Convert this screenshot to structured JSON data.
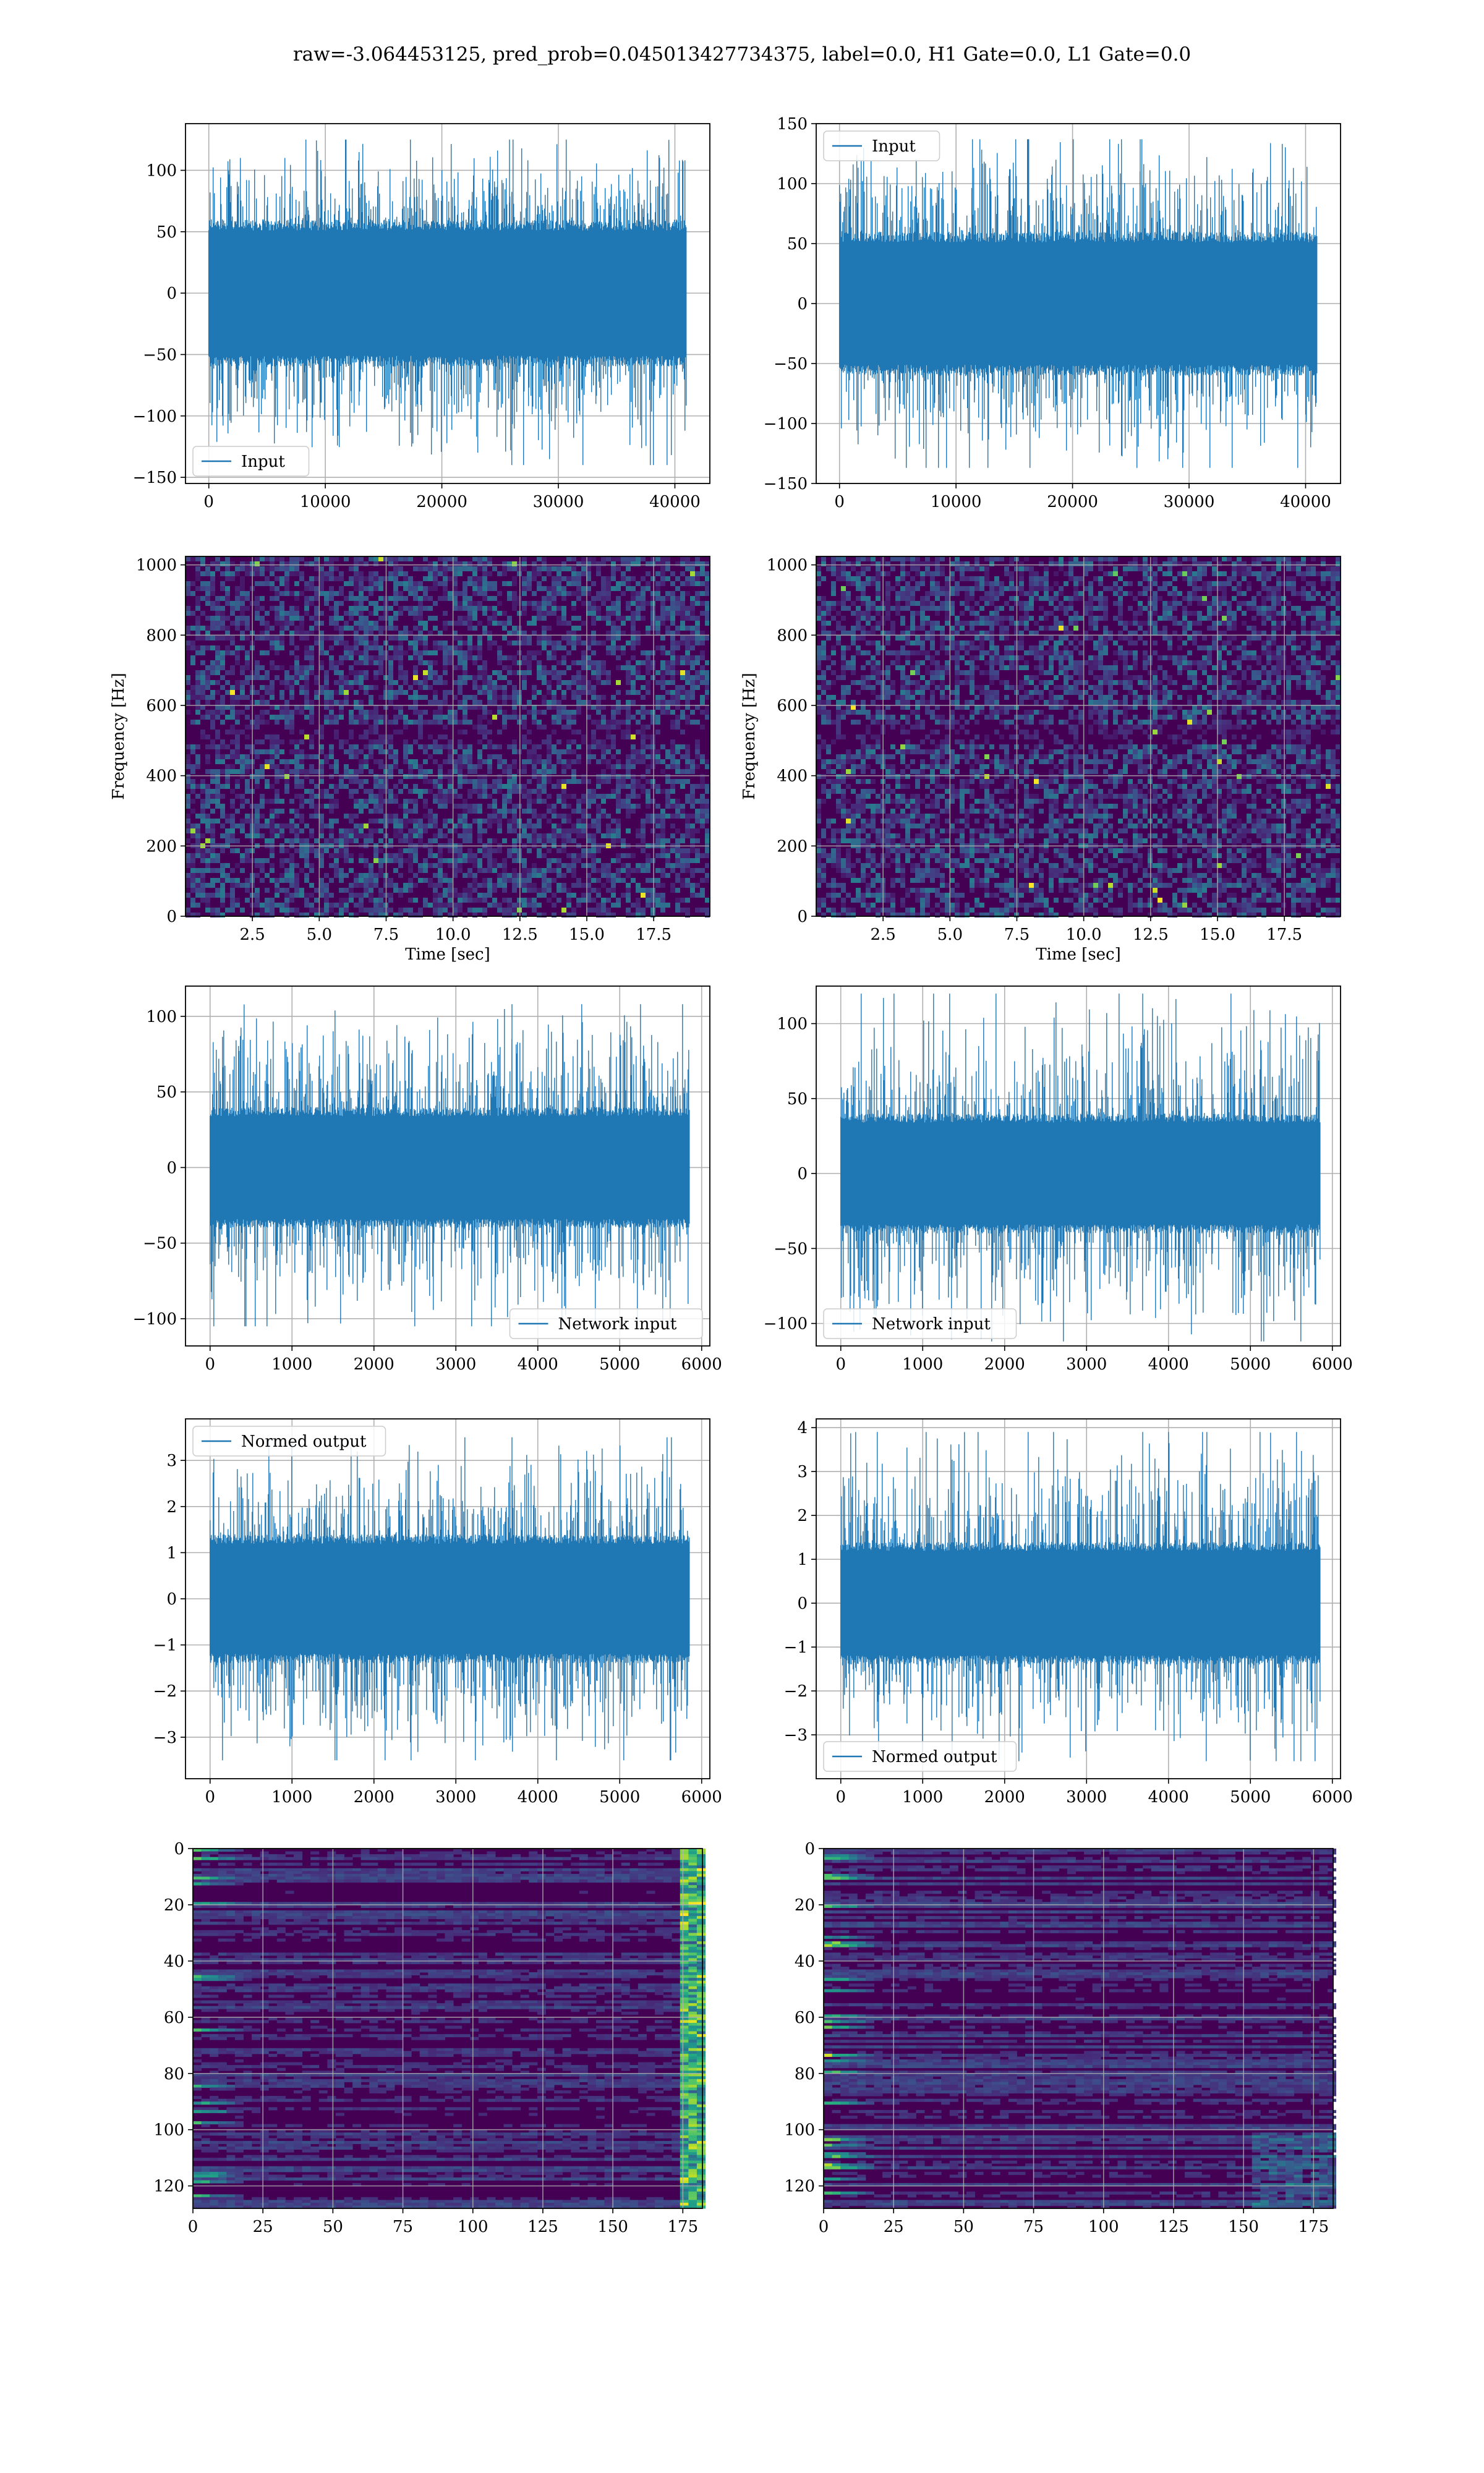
{
  "figure": {
    "title": "raw=-3.064453125, pred_prob=0.045013427734375, label=0.0, H1 Gate=0.0, L1 Gate=0.0"
  },
  "colors": {
    "line": "#1f77b4",
    "grid": "#b0b0b0",
    "viridis_low": "#440154",
    "viridis_mid": "#21918c",
    "viridis_high": "#fde725"
  },
  "chart_data": [
    {
      "id": "r1c1",
      "type": "line",
      "legend": "Input",
      "legend_loc": "lower-left",
      "xlim": [
        -2000,
        43000
      ],
      "ylim": [
        -155,
        138
      ],
      "xticks": [
        0,
        10000,
        20000,
        30000,
        40000
      ],
      "yticks": [
        -150,
        -100,
        -50,
        0,
        50,
        100
      ],
      "n": 40960,
      "envelope": [
        -60,
        60
      ],
      "peak": [
        -140,
        125
      ]
    },
    {
      "id": "r1c2",
      "type": "line",
      "legend": "Input",
      "legend_loc": "upper-left",
      "xlim": [
        -2000,
        43000
      ],
      "ylim": [
        -150,
        150
      ],
      "xticks": [
        0,
        10000,
        20000,
        30000,
        40000
      ],
      "yticks": [
        -150,
        -100,
        -50,
        0,
        50,
        100,
        150
      ],
      "n": 40960,
      "envelope": [
        -60,
        60
      ],
      "peak": [
        -137,
        137
      ]
    },
    {
      "id": "r2c1",
      "type": "heatmap",
      "xlabel": "Time [sec]",
      "ylabel": "Frequency [Hz]",
      "xlim": [
        0,
        19.6
      ],
      "ylim": [
        0,
        1024
      ],
      "xticks": [
        2.5,
        5.0,
        7.5,
        10.0,
        12.5,
        15.0,
        17.5
      ],
      "yticks": [
        0,
        200,
        400,
        600,
        800,
        1000
      ],
      "colormap": "viridis"
    },
    {
      "id": "r2c2",
      "type": "heatmap",
      "xlabel": "Time [sec]",
      "ylabel": "Frequency [Hz]",
      "xlim": [
        0,
        19.6
      ],
      "ylim": [
        0,
        1024
      ],
      "xticks": [
        2.5,
        5.0,
        7.5,
        10.0,
        12.5,
        15.0,
        17.5
      ],
      "yticks": [
        0,
        200,
        400,
        600,
        800,
        1000
      ],
      "colormap": "viridis"
    },
    {
      "id": "r3c1",
      "type": "line",
      "legend": "Network input",
      "legend_loc": "lower-right",
      "xlim": [
        -300,
        6100
      ],
      "ylim": [
        -118,
        120
      ],
      "xticks": [
        0,
        1000,
        2000,
        3000,
        4000,
        5000,
        6000
      ],
      "yticks": [
        -100,
        -50,
        0,
        50,
        100
      ],
      "n": 5850,
      "envelope": [
        -40,
        40
      ],
      "peak": [
        -105,
        108
      ]
    },
    {
      "id": "r3c2",
      "type": "line",
      "legend": "Network input",
      "legend_loc": "lower-left",
      "xlim": [
        -300,
        6100
      ],
      "ylim": [
        -115,
        125
      ],
      "xticks": [
        0,
        1000,
        2000,
        3000,
        4000,
        5000,
        6000
      ],
      "yticks": [
        -100,
        -50,
        0,
        50,
        100
      ],
      "n": 5850,
      "envelope": [
        -40,
        40
      ],
      "peak": [
        -112,
        120
      ]
    },
    {
      "id": "r4c1",
      "type": "line",
      "legend": "Normed output",
      "legend_loc": "upper-left",
      "xlim": [
        -300,
        6100
      ],
      "ylim": [
        -3.9,
        3.9
      ],
      "xticks": [
        0,
        1000,
        2000,
        3000,
        4000,
        5000,
        6000
      ],
      "yticks": [
        -3,
        -2,
        -1,
        0,
        1,
        2,
        3
      ],
      "n": 5850,
      "envelope": [
        -1.4,
        1.4
      ],
      "peak": [
        -3.5,
        3.5
      ]
    },
    {
      "id": "r4c2",
      "type": "line",
      "legend": "Normed output",
      "legend_loc": "lower-left",
      "xlim": [
        -300,
        6100
      ],
      "ylim": [
        -4.0,
        4.2
      ],
      "xticks": [
        0,
        1000,
        2000,
        3000,
        4000,
        5000,
        6000
      ],
      "yticks": [
        -3,
        -2,
        -1,
        0,
        1,
        2,
        3,
        4
      ],
      "n": 5850,
      "envelope": [
        -1.4,
        1.4
      ],
      "peak": [
        -3.6,
        3.9
      ]
    },
    {
      "id": "r5c1",
      "type": "heatmap",
      "xlim": [
        0,
        182
      ],
      "ylim": [
        128,
        0
      ],
      "y_inverted": true,
      "xticks": [
        0,
        25,
        50,
        75,
        100,
        125,
        150,
        175
      ],
      "yticks": [
        0,
        20,
        40,
        60,
        80,
        100,
        120
      ],
      "colormap": "viridis",
      "rows": 128,
      "cols": 182
    },
    {
      "id": "r5c2",
      "type": "heatmap",
      "xlim": [
        0,
        182
      ],
      "ylim": [
        128,
        0
      ],
      "y_inverted": true,
      "xticks": [
        0,
        25,
        50,
        75,
        100,
        125,
        150,
        175
      ],
      "yticks": [
        0,
        20,
        40,
        60,
        80,
        100,
        120
      ],
      "colormap": "viridis",
      "rows": 128,
      "cols": 182
    }
  ]
}
